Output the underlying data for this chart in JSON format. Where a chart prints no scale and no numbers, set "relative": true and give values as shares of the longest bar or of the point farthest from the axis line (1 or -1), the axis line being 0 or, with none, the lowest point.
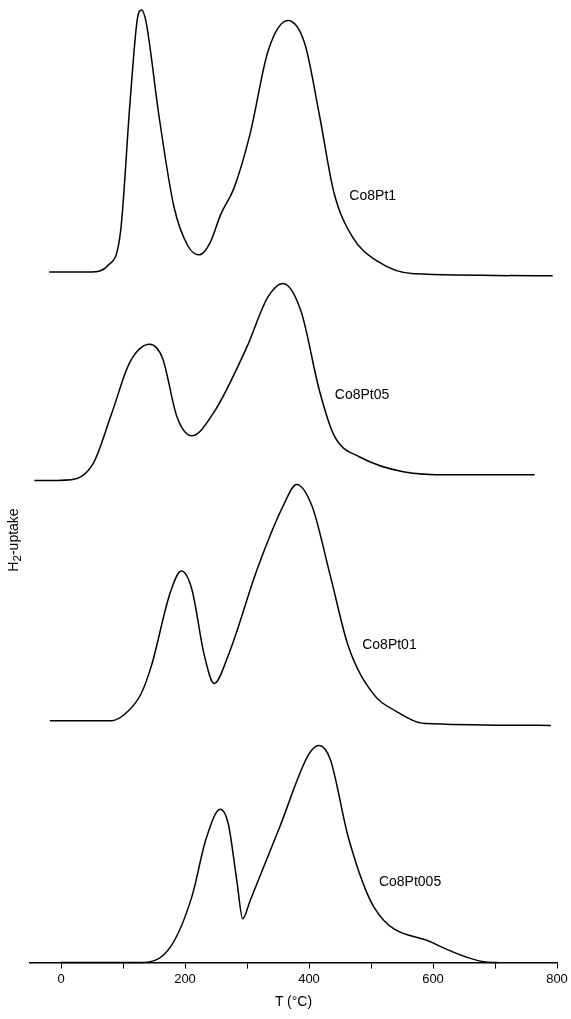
{
  "chart_data": {
    "type": "line",
    "relative": true,
    "xlabel": "T (°C)",
    "ylabel": "H$_{2}$-uptake",
    "xlim": [
      -50,
      800
    ],
    "xticks": [
      0,
      {
        "value": 100,
        "label": null
      },
      200,
      {
        "value": 300,
        "label": null
      },
      400,
      {
        "value": 500,
        "label": null
      },
      600,
      {
        "value": 700,
        "label": null
      },
      800
    ],
    "grid": false,
    "legend": false,
    "marker": "none",
    "line_style": "solid",
    "series": [
      {
        "name": "Co8Pt1",
        "color": "#000000",
        "x": [
          -19,
          49,
          76,
          96,
          111,
          123,
          130,
          137,
          158,
          182,
          205,
          223,
          240,
          258,
          279,
          305,
          334,
          366,
          393,
          417,
          440,
          469,
          511,
          569,
          793
        ],
        "values": [
          0.725,
          0.725,
          0.732,
          0.767,
          0.9,
          0.99,
          1.0,
          0.988,
          0.889,
          0.794,
          0.752,
          0.743,
          0.755,
          0.786,
          0.813,
          0.87,
          0.957,
          0.989,
          0.965,
          0.889,
          0.809,
          0.763,
          0.736,
          0.723,
          0.721
        ]
      },
      {
        "name": "Co8Pt05",
        "color": "#000000",
        "x": [
          -43,
          17,
          52,
          82,
          111,
          143,
          164,
          187,
          211,
          246,
          299,
          334,
          358,
          387,
          417,
          440,
          481,
          623,
          764
        ],
        "values": [
          0.506,
          0.507,
          0.524,
          0.577,
          0.63,
          0.649,
          0.634,
          0.573,
          0.553,
          0.577,
          0.645,
          0.699,
          0.713,
          0.684,
          0.6,
          0.554,
          0.531,
          0.512,
          0.512
        ]
      },
      {
        "name": "Co8Pt01",
        "color": "#000000",
        "x": [
          -18,
          82,
          105,
          129,
          146,
          176,
          194,
          211,
          231,
          247,
          270,
          317,
          358,
          380,
          405,
          434,
          464,
          505,
          540,
          587,
          790
        ],
        "values": [
          0.254,
          0.254,
          0.262,
          0.282,
          0.312,
          0.388,
          0.411,
          0.392,
          0.323,
          0.293,
          0.323,
          0.414,
          0.479,
          0.502,
          0.479,
          0.407,
          0.331,
          0.281,
          0.264,
          0.251,
          0.249
        ]
      },
      {
        "name": "Co8Pt005",
        "color": "#000000",
        "x": [
          0,
          129,
          176,
          211,
          234,
          257,
          270,
          284,
          293,
          305,
          352,
          399,
          416,
          434,
          464,
          505,
          599,
          681,
          705
        ],
        "values": [
          0,
          0,
          0.016,
          0.069,
          0.13,
          0.161,
          0.145,
          0.084,
          0.046,
          0.065,
          0.141,
          0.218,
          0.228,
          0.214,
          0.13,
          0.058,
          0.021,
          0.001,
          0
        ]
      }
    ]
  }
}
